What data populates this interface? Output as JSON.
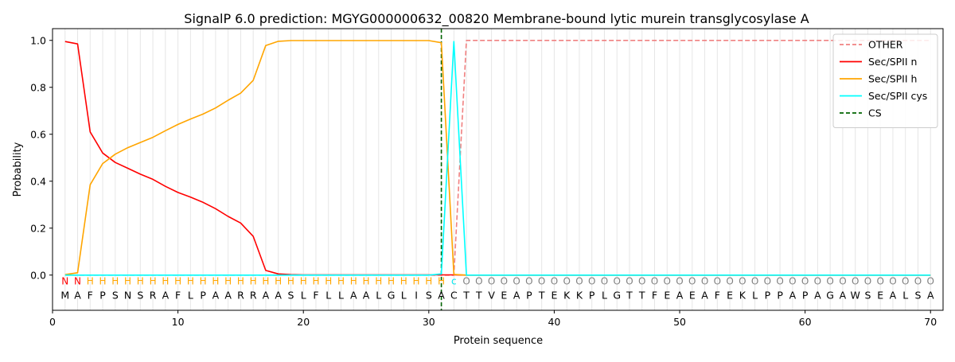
{
  "chart_data": {
    "type": "line",
    "title": "SignalP 6.0 prediction: MGYG000000632_00820 Membrane-bound lytic murein transglycosylase A",
    "xlabel": "Protein sequence",
    "ylabel": "Probability",
    "xlim": [
      0,
      71
    ],
    "ylim": [
      -0.15,
      1.05
    ],
    "xticks": [
      0,
      10,
      20,
      30,
      40,
      50,
      60,
      70
    ],
    "yticks": [
      0.0,
      0.2,
      0.4,
      0.6,
      0.8,
      1.0
    ],
    "x_tick_labels": [
      "0",
      "10",
      "20",
      "30",
      "40",
      "50",
      "60",
      "70"
    ],
    "y_tick_labels": [
      "0.0",
      "0.2",
      "0.4",
      "0.6",
      "0.8",
      "1.0"
    ],
    "legend_position": "top-right",
    "grid": "vertical lines at each residue position",
    "sequence": [
      "M",
      "A",
      "F",
      "P",
      "S",
      "N",
      "S",
      "R",
      "A",
      "F",
      "L",
      "P",
      "A",
      "A",
      "R",
      "R",
      "A",
      "A",
      "S",
      "L",
      "F",
      "L",
      "L",
      "A",
      "A",
      "L",
      "G",
      "L",
      "I",
      "S",
      "A",
      "C",
      "T",
      "T",
      "V",
      "E",
      "A",
      "P",
      "T",
      "E",
      "K",
      "K",
      "P",
      "L",
      "G",
      "T",
      "T",
      "F",
      "E",
      "A",
      "E",
      "A",
      "F",
      "E",
      "K",
      "L",
      "P",
      "P",
      "A",
      "P",
      "A",
      "G",
      "A",
      "W",
      "S",
      "E",
      "A",
      "L",
      "S",
      "A"
    ],
    "region_labels": [
      "N",
      "N",
      "H",
      "H",
      "H",
      "H",
      "H",
      "H",
      "H",
      "H",
      "H",
      "H",
      "H",
      "H",
      "H",
      "H",
      "H",
      "H",
      "H",
      "H",
      "H",
      "H",
      "H",
      "H",
      "H",
      "H",
      "H",
      "H",
      "H",
      "H",
      "H",
      "C",
      "O",
      "O",
      "O",
      "O",
      "O",
      "O",
      "O",
      "O",
      "O",
      "O",
      "O",
      "O",
      "O",
      "O",
      "O",
      "O",
      "O",
      "O",
      "O",
      "O",
      "O",
      "O",
      "O",
      "O",
      "O",
      "O",
      "O",
      "O",
      "O",
      "O",
      "O",
      "O",
      "O",
      "O",
      "O",
      "O",
      "O",
      "O"
    ],
    "region_colors": {
      "N": "#ff0000",
      "H": "#ffa500",
      "C": "#00e5ee",
      "O": "#808080"
    },
    "cleavage_site": 31,
    "x": [
      1,
      2,
      3,
      4,
      5,
      6,
      7,
      8,
      9,
      10,
      11,
      12,
      13,
      14,
      15,
      16,
      17,
      18,
      19,
      20,
      21,
      22,
      23,
      24,
      25,
      26,
      27,
      28,
      29,
      30,
      31,
      32,
      33,
      34,
      35,
      36,
      37,
      38,
      39,
      40,
      41,
      42,
      43,
      44,
      45,
      46,
      47,
      48,
      49,
      50,
      51,
      52,
      53,
      54,
      55,
      56,
      57,
      58,
      59,
      60,
      61,
      62,
      63,
      64,
      65,
      66,
      67,
      68,
      69,
      70
    ],
    "series": [
      {
        "name": "OTHER",
        "color": "#f08080",
        "style": "dashed",
        "values": [
          0,
          0,
          0,
          0,
          0,
          0,
          0,
          0,
          0,
          0,
          0,
          0,
          0,
          0,
          0,
          0,
          0,
          0,
          0,
          0,
          0,
          0,
          0,
          0,
          0,
          0,
          0,
          0,
          0,
          0,
          0,
          0,
          1,
          1,
          1,
          1,
          1,
          1,
          1,
          1,
          1,
          1,
          1,
          1,
          1,
          1,
          1,
          1,
          1,
          1,
          1,
          1,
          1,
          1,
          1,
          1,
          1,
          1,
          1,
          1,
          1,
          1,
          1,
          1,
          1,
          1,
          1,
          1,
          1,
          1
        ]
      },
      {
        "name": "Sec/SPII n",
        "color": "#ff0000",
        "style": "solid",
        "values": [
          0.995,
          0.985,
          0.61,
          0.52,
          0.48,
          0.455,
          0.43,
          0.408,
          0.378,
          0.352,
          0.332,
          0.31,
          0.283,
          0.25,
          0.222,
          0.165,
          0.02,
          0.005,
          0.002,
          0.001,
          0.001,
          0.001,
          0.001,
          0.001,
          0.001,
          0.001,
          0.001,
          0.001,
          0.001,
          0.001,
          0.001,
          0.001,
          0,
          0,
          0,
          0,
          0,
          0,
          0,
          0,
          0,
          0,
          0,
          0,
          0,
          0,
          0,
          0,
          0,
          0,
          0,
          0,
          0,
          0,
          0,
          0,
          0,
          0,
          0,
          0,
          0,
          0,
          0,
          0,
          0,
          0,
          0,
          0,
          0,
          0
        ]
      },
      {
        "name": "Sec/SPII h",
        "color": "#ffa500",
        "style": "solid",
        "values": [
          0.002,
          0.01,
          0.385,
          0.475,
          0.515,
          0.543,
          0.565,
          0.587,
          0.615,
          0.642,
          0.665,
          0.686,
          0.712,
          0.745,
          0.775,
          0.83,
          0.978,
          0.996,
          0.999,
          0.999,
          0.999,
          0.999,
          0.999,
          0.999,
          0.999,
          0.999,
          0.999,
          0.999,
          0.999,
          0.999,
          0.99,
          0.003,
          0,
          0,
          0,
          0,
          0,
          0,
          0,
          0,
          0,
          0,
          0,
          0,
          0,
          0,
          0,
          0,
          0,
          0,
          0,
          0,
          0,
          0,
          0,
          0,
          0,
          0,
          0,
          0,
          0,
          0,
          0,
          0,
          0,
          0,
          0,
          0,
          0,
          0
        ]
      },
      {
        "name": "Sec/SPII cys",
        "color": "#00ffff",
        "style": "solid",
        "values": [
          0,
          0,
          0,
          0,
          0,
          0,
          0,
          0,
          0,
          0,
          0,
          0,
          0,
          0,
          0,
          0,
          0,
          0,
          0,
          0,
          0,
          0,
          0,
          0,
          0,
          0,
          0,
          0,
          0,
          0,
          0.005,
          0.995,
          0,
          0,
          0,
          0,
          0,
          0,
          0,
          0,
          0,
          0,
          0,
          0,
          0,
          0,
          0,
          0,
          0,
          0,
          0,
          0,
          0,
          0,
          0,
          0,
          0,
          0,
          0,
          0,
          0,
          0,
          0,
          0,
          0,
          0,
          0,
          0,
          0,
          0
        ]
      }
    ],
    "cs_legend": {
      "name": "CS",
      "color": "#006400",
      "style": "dashed"
    }
  }
}
